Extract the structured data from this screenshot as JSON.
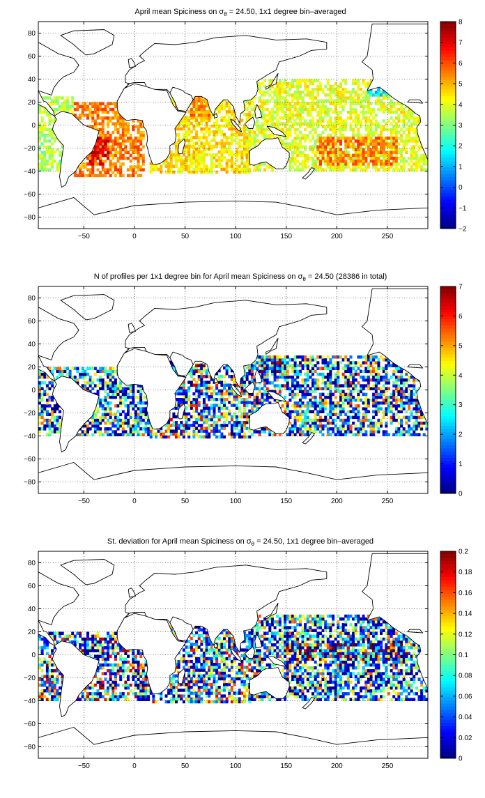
{
  "figure": {
    "panels": [
      {
        "title_pre": "April mean Spiciness on σ",
        "title_sub": "θ",
        "title_post": " = 24.50, 1x1 degree bin–averaged",
        "colorbar": {
          "min": -2,
          "max": 8,
          "ticks": [
            "8",
            "7",
            "6",
            "5",
            "4",
            "3",
            "2",
            "1",
            "0",
            "−1",
            "−2"
          ]
        }
      },
      {
        "title_pre": "N of profiles per 1x1 degree bin for April mean Spiciness on σ",
        "title_sub": "θ",
        "title_post": " = 24.50 (28386 in total)",
        "colorbar": {
          "min": 0,
          "max": 7,
          "ticks": [
            "7",
            "6",
            "5",
            "4",
            "3",
            "2",
            "1",
            "0"
          ]
        }
      },
      {
        "title_pre": "St. deviation for April mean Spiciness on σ",
        "title_sub": "θ",
        "title_post": " = 24.50, 1x1 degree bin–averaged",
        "colorbar": {
          "min": 0,
          "max": 0.2,
          "ticks": [
            "0.2",
            "0.18",
            "0.16",
            "0.14",
            "0.12",
            "0.1",
            "0.08",
            "0.06",
            "0.04",
            "0.02",
            "0"
          ]
        }
      }
    ],
    "xticks": [
      "−50",
      "0",
      "50",
      "100",
      "150",
      "200",
      "250"
    ],
    "yticks": [
      "80",
      "60",
      "40",
      "20",
      "0",
      "−20",
      "−40",
      "−60",
      "−80"
    ]
  },
  "chart_data": [
    {
      "type": "heatmap",
      "title": "April mean Spiciness on σθ = 24.50, 1x1 degree bin–averaged",
      "xlim": [
        -95,
        290
      ],
      "ylim": [
        -90,
        90
      ],
      "grid": true,
      "colorbar_range": [
        -2,
        8
      ],
      "regions": [
        {
          "lon": [
            -95,
            -60
          ],
          "lat": [
            -40,
            25
          ],
          "value": 3.5
        },
        {
          "lon": [
            -60,
            10
          ],
          "lat": [
            -45,
            20
          ],
          "value": 5.5
        },
        {
          "lon": [
            -45,
            -25
          ],
          "lat": [
            -35,
            -10
          ],
          "value": 7.0
        },
        {
          "lon": [
            15,
            115
          ],
          "lat": [
            -42,
            25
          ],
          "value": 4.5
        },
        {
          "lon": [
            55,
            75
          ],
          "lat": [
            5,
            25
          ],
          "value": 5.5
        },
        {
          "lon": [
            110,
            290
          ],
          "lat": [
            -40,
            40
          ],
          "value": 4.0
        },
        {
          "lon": [
            180,
            260
          ],
          "lat": [
            -35,
            -10
          ],
          "value": 5.5
        },
        {
          "lon": [
            230,
            250
          ],
          "lat": [
            25,
            35
          ],
          "value": 1.5
        }
      ]
    },
    {
      "type": "heatmap",
      "title": "N of profiles per 1x1 degree bin for April mean Spiciness on σθ = 24.50 (28386 in total)",
      "xlim": [
        -95,
        290
      ],
      "ylim": [
        -90,
        90
      ],
      "grid": true,
      "colorbar_range": [
        0,
        7
      ],
      "total_profiles": 28386,
      "regions": [
        {
          "lon": [
            -95,
            15
          ],
          "lat": [
            -40,
            20
          ],
          "value": 2.0
        },
        {
          "lon": [
            15,
            115
          ],
          "lat": [
            -42,
            25
          ],
          "value": 3.0
        },
        {
          "lon": [
            60,
            70
          ],
          "lat": [
            15,
            25
          ],
          "value": 6.5
        },
        {
          "lon": [
            115,
            290
          ],
          "lat": [
            -40,
            30
          ],
          "value": 2.5
        },
        {
          "lon": [
            125,
            145
          ],
          "lat": [
            15,
            30
          ],
          "value": 6.0
        }
      ]
    },
    {
      "type": "heatmap",
      "title": "St. deviation for April mean Spiciness on σθ = 24.50, 1x1 degree bin–averaged",
      "xlim": [
        -95,
        290
      ],
      "ylim": [
        -90,
        90
      ],
      "grid": true,
      "colorbar_range": [
        0,
        0.2
      ],
      "regions": [
        {
          "lon": [
            -95,
            15
          ],
          "lat": [
            -40,
            20
          ],
          "value": 0.1
        },
        {
          "lon": [
            15,
            115
          ],
          "lat": [
            -42,
            25
          ],
          "value": 0.08
        },
        {
          "lon": [
            115,
            290
          ],
          "lat": [
            -40,
            35
          ],
          "value": 0.06
        },
        {
          "lon": [
            150,
            270
          ],
          "lat": [
            -5,
            10
          ],
          "value": 0.16
        }
      ]
    }
  ]
}
